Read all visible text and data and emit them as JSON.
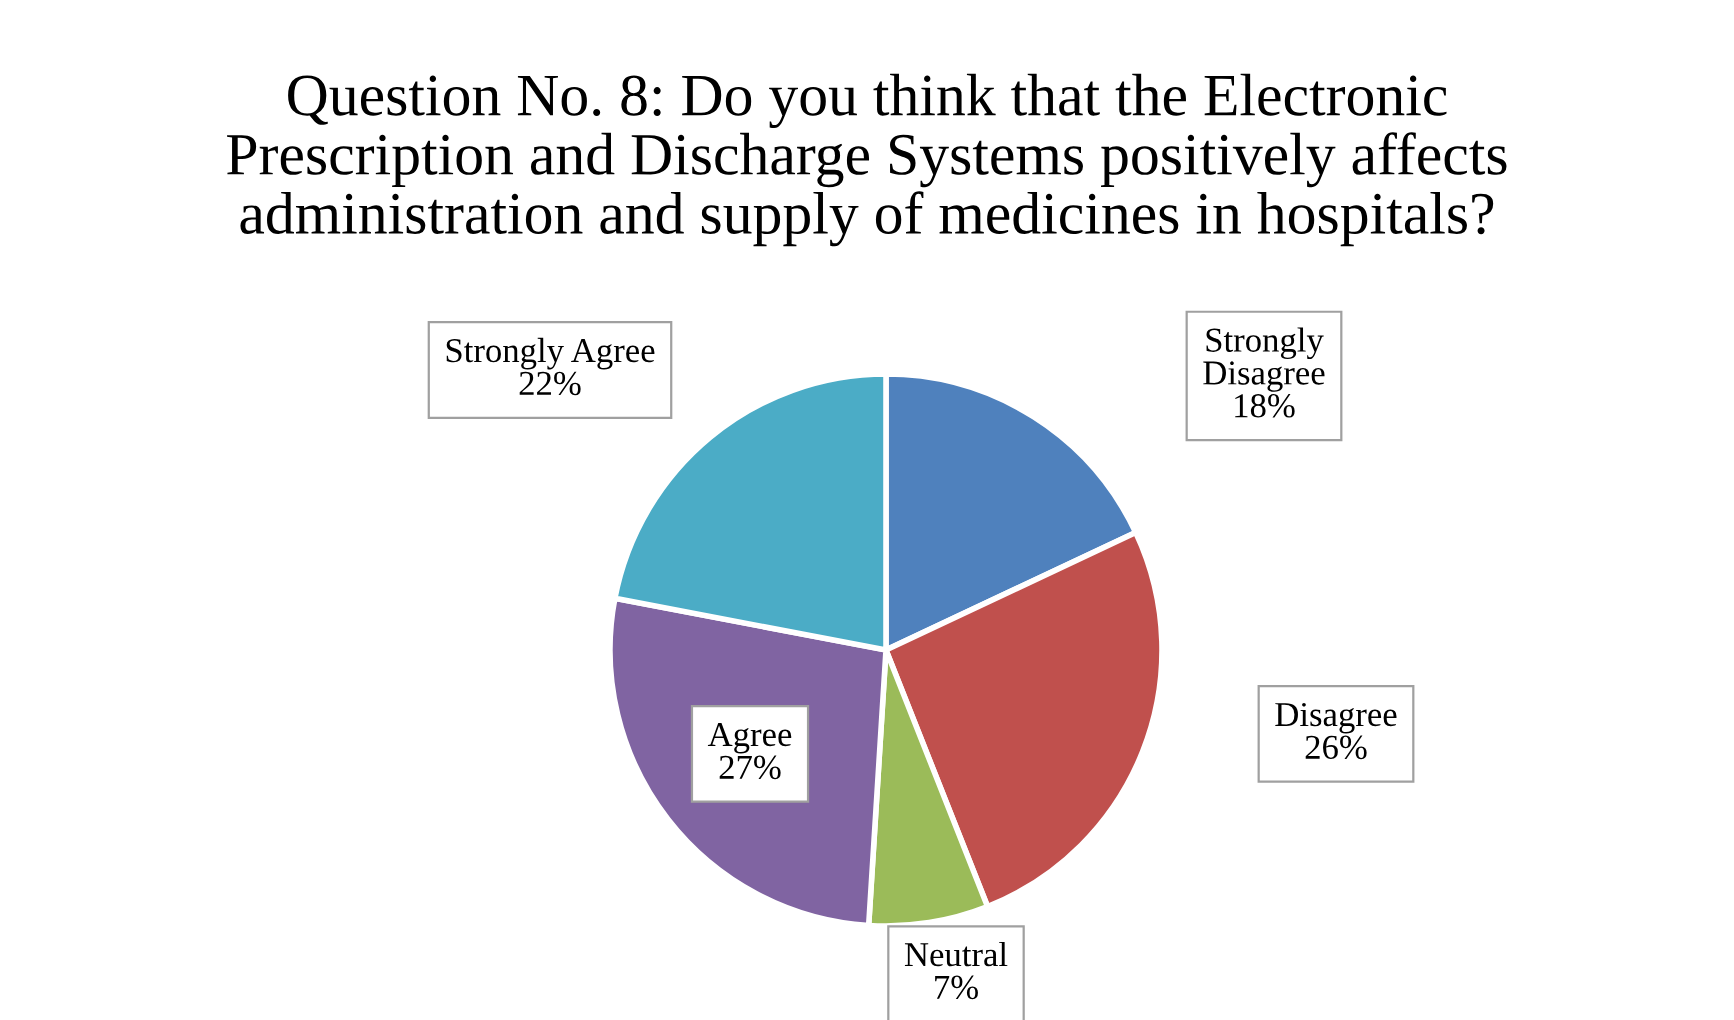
{
  "chart_data": {
    "type": "pie",
    "title": "Question No. 8: Do you think that the Electronic\nPrescription and Discharge Systems positively affects\nadministration and supply of medicines in hospitals?",
    "categories": [
      "Strongly Disagree",
      "Disagree",
      "Neutral",
      "Agree",
      "Strongly Agree"
    ],
    "values": [
      18,
      26,
      7,
      27,
      22
    ],
    "value_labels": [
      "18%",
      "26%",
      "7%",
      "27%",
      "22%"
    ],
    "colors": [
      "#4f81bd",
      "#c0504d",
      "#9bbb59",
      "#8064a2",
      "#4bacc6"
    ],
    "legend": false
  }
}
